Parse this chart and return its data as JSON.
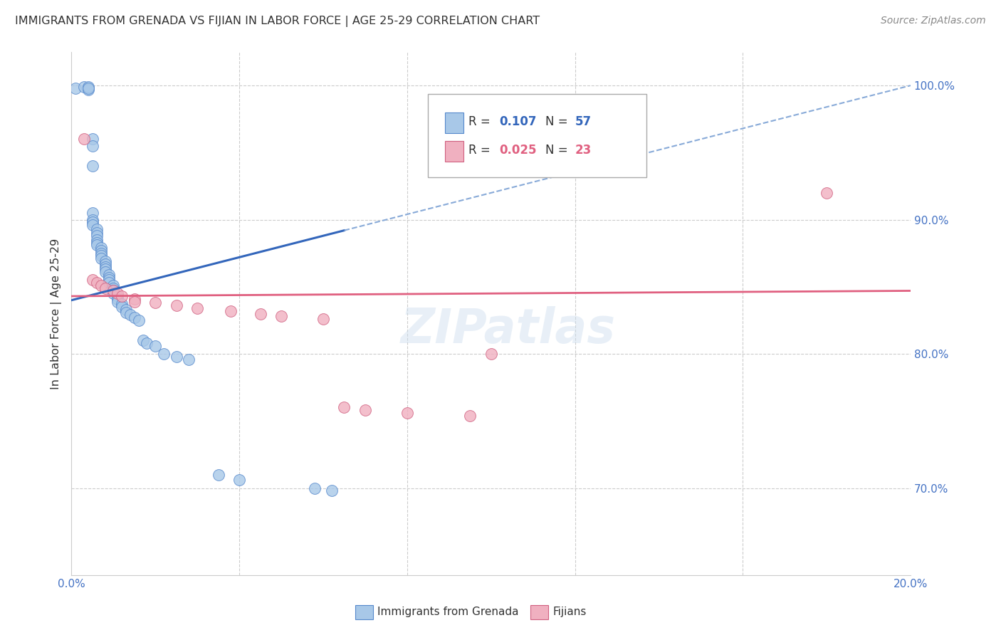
{
  "title": "IMMIGRANTS FROM GRENADA VS FIJIAN IN LABOR FORCE | AGE 25-29 CORRELATION CHART",
  "source": "Source: ZipAtlas.com",
  "ylabel": "In Labor Force | Age 25-29",
  "xlim": [
    0.0,
    0.2
  ],
  "ylim": [
    0.635,
    1.025
  ],
  "y_ticks": [
    0.7,
    0.8,
    0.9,
    1.0
  ],
  "x_ticks": [
    0.0,
    0.04,
    0.08,
    0.12,
    0.16,
    0.2
  ],
  "blue_R": "0.107",
  "blue_N": "57",
  "pink_R": "0.025",
  "pink_N": "23",
  "blue_scatter_color": "#a8c8e8",
  "blue_edge_color": "#5588cc",
  "pink_scatter_color": "#f0b0c0",
  "pink_edge_color": "#d06080",
  "blue_line_color": "#3366bb",
  "blue_dash_color": "#88aad8",
  "pink_line_color": "#e06080",
  "grid_color": "#cccccc",
  "axis_tick_color": "#4472c4",
  "title_color": "#333333",
  "source_color": "#888888",
  "watermark": "ZIPatlas",
  "blue_scatter_x": [
    0.001,
    0.003,
    0.004,
    0.004,
    0.004,
    0.004,
    0.005,
    0.005,
    0.005,
    0.005,
    0.005,
    0.005,
    0.005,
    0.006,
    0.006,
    0.006,
    0.006,
    0.006,
    0.006,
    0.007,
    0.007,
    0.007,
    0.007,
    0.007,
    0.008,
    0.008,
    0.008,
    0.008,
    0.008,
    0.009,
    0.009,
    0.009,
    0.009,
    0.01,
    0.01,
    0.01,
    0.01,
    0.011,
    0.011,
    0.011,
    0.012,
    0.012,
    0.013,
    0.013,
    0.014,
    0.015,
    0.016,
    0.017,
    0.018,
    0.02,
    0.022,
    0.025,
    0.028,
    0.035,
    0.04,
    0.058,
    0.062
  ],
  "blue_scatter_y": [
    0.998,
    0.999,
    0.998,
    0.997,
    0.999,
    0.998,
    0.96,
    0.955,
    0.94,
    0.905,
    0.9,
    0.898,
    0.896,
    0.893,
    0.89,
    0.888,
    0.885,
    0.883,
    0.881,
    0.879,
    0.877,
    0.875,
    0.873,
    0.871,
    0.869,
    0.867,
    0.865,
    0.863,
    0.861,
    0.859,
    0.857,
    0.855,
    0.853,
    0.851,
    0.849,
    0.847,
    0.845,
    0.843,
    0.841,
    0.839,
    0.837,
    0.835,
    0.833,
    0.831,
    0.829,
    0.827,
    0.825,
    0.81,
    0.808,
    0.806,
    0.8,
    0.798,
    0.796,
    0.71,
    0.706,
    0.7,
    0.698
  ],
  "pink_scatter_x": [
    0.003,
    0.005,
    0.006,
    0.007,
    0.008,
    0.01,
    0.011,
    0.012,
    0.015,
    0.015,
    0.02,
    0.025,
    0.03,
    0.038,
    0.045,
    0.05,
    0.06,
    0.065,
    0.07,
    0.08,
    0.095,
    0.1,
    0.18
  ],
  "pink_scatter_y": [
    0.96,
    0.855,
    0.853,
    0.851,
    0.849,
    0.847,
    0.845,
    0.843,
    0.841,
    0.839,
    0.838,
    0.836,
    0.834,
    0.832,
    0.83,
    0.828,
    0.826,
    0.76,
    0.758,
    0.756,
    0.754,
    0.8,
    0.92
  ],
  "blue_trend_x0": 0.0,
  "blue_trend_x_solid_end": 0.065,
  "blue_trend_x_dash_end": 0.2,
  "blue_trend_y0": 0.84,
  "blue_trend_slope": 0.8,
  "pink_trend_y0": 0.843,
  "pink_trend_slope": 0.02
}
